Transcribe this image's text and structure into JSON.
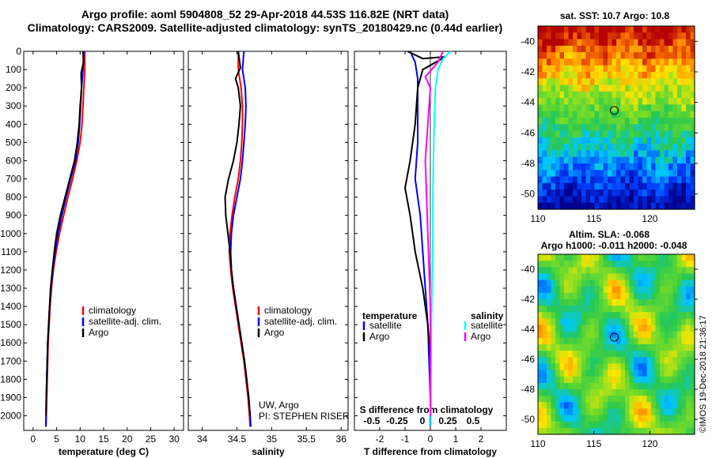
{
  "title": {
    "line1": "Argo profile: aoml 5904808_52 29-Apr-2018 44.53S 116.82E (NRT data)",
    "line2": "Climatology: CARS2009. Satellite-adjusted climatology: synTS_20180429.nc (0.44d earlier)"
  },
  "colors": {
    "climatology": "#ff0000",
    "satellite": "#0000ff",
    "argo": "#000000",
    "sat_salinity": "#00ffff",
    "argo_salinity": "#ff00ff"
  },
  "chart_data": [
    {
      "type": "line",
      "name": "temperature",
      "xlabel": "temperature (deg C)",
      "xlim": [
        -2,
        32
      ],
      "xticks": [
        "0",
        "5",
        "10",
        "15",
        "20",
        "25",
        "30"
      ],
      "ylim": [
        2080,
        0
      ],
      "yticks": [
        "0",
        "100",
        "200",
        "300",
        "400",
        "500",
        "600",
        "700",
        "800",
        "900",
        "1000",
        "1100",
        "1200",
        "1300",
        "1400",
        "1500",
        "1600",
        "1700",
        "1800",
        "1900",
        "2000"
      ],
      "legend": [
        "climatology",
        "satellite-adj. clim.",
        "Argo"
      ],
      "series": [
        {
          "name": "climatology",
          "points": [
            [
              11.0,
              0
            ],
            [
              11.0,
              100
            ],
            [
              10.8,
              200
            ],
            [
              10.6,
              300
            ],
            [
              10.4,
              400
            ],
            [
              10.0,
              500
            ],
            [
              9.3,
              600
            ],
            [
              8.4,
              700
            ],
            [
              7.4,
              800
            ],
            [
              6.5,
              900
            ],
            [
              5.6,
              1000
            ],
            [
              4.9,
              1100
            ],
            [
              4.3,
              1200
            ],
            [
              3.9,
              1300
            ],
            [
              3.6,
              1400
            ],
            [
              3.4,
              1500
            ],
            [
              3.2,
              1600
            ],
            [
              3.1,
              1700
            ],
            [
              3.0,
              1800
            ],
            [
              2.9,
              1900
            ],
            [
              2.8,
              2000
            ],
            [
              2.75,
              2060
            ]
          ]
        },
        {
          "name": "satellite-adj. clim.",
          "points": [
            [
              10.8,
              0
            ],
            [
              10.6,
              100
            ],
            [
              10.3,
              200
            ],
            [
              10.1,
              300
            ],
            [
              9.9,
              400
            ],
            [
              9.6,
              500
            ],
            [
              9.0,
              600
            ],
            [
              8.0,
              700
            ],
            [
              7.0,
              800
            ],
            [
              6.1,
              900
            ],
            [
              5.3,
              1000
            ],
            [
              4.7,
              1100
            ],
            [
              4.2,
              1200
            ],
            [
              3.8,
              1300
            ],
            [
              3.5,
              1400
            ],
            [
              3.3,
              1500
            ],
            [
              3.1,
              1600
            ],
            [
              3.0,
              1700
            ],
            [
              2.9,
              1800
            ],
            [
              2.8,
              1900
            ],
            [
              2.75,
              2000
            ],
            [
              2.7,
              2060
            ]
          ]
        },
        {
          "name": "Argo",
          "points": [
            [
              10.6,
              0
            ],
            [
              10.7,
              60
            ],
            [
              10.2,
              120
            ],
            [
              10.3,
              200
            ],
            [
              10.0,
              300
            ],
            [
              9.8,
              400
            ],
            [
              9.4,
              500
            ],
            [
              8.8,
              600
            ],
            [
              7.8,
              700
            ],
            [
              6.8,
              800
            ],
            [
              5.8,
              900
            ],
            [
              5.0,
              1000
            ],
            [
              4.5,
              1100
            ],
            [
              4.1,
              1200
            ],
            [
              3.7,
              1300
            ],
            [
              3.5,
              1400
            ],
            [
              3.3,
              1500
            ],
            [
              3.1,
              1600
            ],
            [
              3.0,
              1700
            ],
            [
              2.9,
              1800
            ],
            [
              2.8,
              1900
            ],
            [
              2.75,
              2000
            ]
          ]
        }
      ]
    },
    {
      "type": "line",
      "name": "salinity",
      "xlabel": "salinity",
      "xlim": [
        33.8,
        36.1
      ],
      "xticks": [
        "34",
        "34.5",
        "35",
        "35.5",
        "36"
      ],
      "ylim": [
        2080,
        0
      ],
      "legend": [
        "climatology",
        "satellite-adj. clim.",
        "Argo"
      ],
      "annotation": [
        "UW, Argo",
        "PI: STEPHEN RISER"
      ],
      "series": [
        {
          "name": "climatology",
          "points": [
            [
              34.52,
              0
            ],
            [
              34.52,
              100
            ],
            [
              34.56,
              200
            ],
            [
              34.58,
              300
            ],
            [
              34.58,
              400
            ],
            [
              34.57,
              500
            ],
            [
              34.55,
              600
            ],
            [
              34.52,
              700
            ],
            [
              34.47,
              800
            ],
            [
              34.43,
              900
            ],
            [
              34.4,
              1000
            ],
            [
              34.39,
              1100
            ],
            [
              34.41,
              1200
            ],
            [
              34.44,
              1300
            ],
            [
              34.48,
              1400
            ],
            [
              34.52,
              1500
            ],
            [
              34.56,
              1600
            ],
            [
              34.6,
              1700
            ],
            [
              34.63,
              1800
            ],
            [
              34.66,
              1900
            ],
            [
              34.68,
              2000
            ],
            [
              34.69,
              2060
            ]
          ]
        },
        {
          "name": "satellite-adj. clim.",
          "points": [
            [
              34.6,
              0
            ],
            [
              34.58,
              100
            ],
            [
              34.62,
              200
            ],
            [
              34.63,
              300
            ],
            [
              34.62,
              400
            ],
            [
              34.6,
              500
            ],
            [
              34.58,
              600
            ],
            [
              34.55,
              700
            ],
            [
              34.5,
              800
            ],
            [
              34.45,
              900
            ],
            [
              34.42,
              1000
            ],
            [
              34.41,
              1100
            ],
            [
              34.42,
              1200
            ],
            [
              34.45,
              1300
            ],
            [
              34.49,
              1400
            ],
            [
              34.53,
              1500
            ],
            [
              34.57,
              1600
            ],
            [
              34.61,
              1700
            ],
            [
              34.64,
              1800
            ],
            [
              34.67,
              1900
            ],
            [
              34.69,
              2000
            ],
            [
              34.7,
              2060
            ]
          ]
        },
        {
          "name": "Argo",
          "points": [
            [
              34.52,
              0
            ],
            [
              34.55,
              90
            ],
            [
              34.48,
              150
            ],
            [
              34.52,
              200
            ],
            [
              34.55,
              300
            ],
            [
              34.53,
              400
            ],
            [
              34.5,
              500
            ],
            [
              34.45,
              600
            ],
            [
              34.38,
              700
            ],
            [
              34.33,
              800
            ],
            [
              34.34,
              900
            ],
            [
              34.37,
              1000
            ],
            [
              34.4,
              1100
            ],
            [
              34.42,
              1200
            ],
            [
              34.45,
              1300
            ],
            [
              34.49,
              1400
            ],
            [
              34.53,
              1500
            ],
            [
              34.57,
              1600
            ],
            [
              34.61,
              1700
            ],
            [
              34.64,
              1800
            ],
            [
              34.67,
              1900
            ],
            [
              34.69,
              2000
            ]
          ]
        }
      ]
    },
    {
      "type": "line",
      "name": "difference",
      "xlabel": "T difference from climatology",
      "xlabel2": "S difference from climatology",
      "xlim": [
        -3,
        3
      ],
      "xticks": [
        "-2",
        "-1",
        "0",
        "1",
        "2"
      ],
      "xticks2": [
        "-0.5",
        "-0.25",
        "0",
        "0.25",
        "0.5"
      ],
      "ylim": [
        2080,
        0
      ],
      "legend_left_title": "temperature",
      "legend_right_title": "salinity",
      "legend": [
        "satellite",
        "Argo",
        "satellite",
        "Argo"
      ],
      "series": [
        {
          "name": "T satellite",
          "points": [
            [
              -0.8,
              0
            ],
            [
              -0.6,
              60
            ],
            [
              -0.5,
              150
            ],
            [
              -0.5,
              300
            ],
            [
              -0.5,
              500
            ],
            [
              -0.6,
              700
            ],
            [
              -0.4,
              900
            ],
            [
              -0.3,
              1100
            ],
            [
              -0.2,
              1300
            ],
            [
              -0.1,
              1500
            ],
            [
              -0.05,
              1700
            ],
            [
              0,
              1900
            ],
            [
              0,
              2060
            ]
          ]
        },
        {
          "name": "T Argo",
          "points": [
            [
              -0.9,
              0
            ],
            [
              -0.3,
              40
            ],
            [
              0.6,
              30
            ],
            [
              -0.3,
              100
            ],
            [
              -0.5,
              200
            ],
            [
              -0.6,
              400
            ],
            [
              -0.8,
              600
            ],
            [
              -1.0,
              750
            ],
            [
              -0.8,
              900
            ],
            [
              -0.6,
              1100
            ],
            [
              -0.3,
              1300
            ],
            [
              -0.1,
              1500
            ],
            [
              0,
              1700
            ],
            [
              0,
              1900
            ],
            [
              0,
              2000
            ]
          ]
        },
        {
          "name": "S satellite",
          "points": [
            [
              0.8,
              0
            ],
            [
              0.5,
              40
            ],
            [
              0.3,
              100
            ],
            [
              0.2,
              200
            ],
            [
              0.15,
              400
            ],
            [
              0.12,
              600
            ],
            [
              0.1,
              800
            ],
            [
              0.1,
              1000
            ],
            [
              0.08,
              1200
            ],
            [
              0.05,
              1400
            ],
            [
              0.03,
              1600
            ],
            [
              0.02,
              1800
            ],
            [
              0.02,
              2060
            ]
          ]
        },
        {
          "name": "S Argo",
          "points": [
            [
              0.5,
              0
            ],
            [
              0.3,
              60
            ],
            [
              -0.2,
              140
            ],
            [
              0,
              200
            ],
            [
              -0.1,
              400
            ],
            [
              -0.2,
              600
            ],
            [
              -0.15,
              800
            ],
            [
              -0.1,
              1000
            ],
            [
              -0.05,
              1200
            ],
            [
              0,
              1400
            ],
            [
              0,
              1600
            ],
            [
              0,
              1800
            ],
            [
              0,
              2000
            ]
          ]
        }
      ]
    },
    {
      "type": "heatmap",
      "name": "sst-map",
      "title": "sat. SST: 10.7 Argo: 10.8",
      "xticks": [
        "110",
        "115",
        "120"
      ],
      "yticks": [
        "-40",
        "-42",
        "-44",
        "-46",
        "-48",
        "-50"
      ],
      "xlim": [
        110,
        124
      ],
      "ylim": [
        -51,
        -39
      ],
      "marker": {
        "lon": 116.82,
        "lat": -44.53
      }
    },
    {
      "type": "heatmap",
      "name": "sla-map",
      "title": "Altim. SLA: -0.068",
      "subtitle": "Argo h1000: -0.011 h2000: -0.048",
      "xticks": [
        "110",
        "115",
        "120"
      ],
      "yticks": [
        "-40",
        "-42",
        "-44",
        "-46",
        "-48",
        "-50"
      ],
      "xlim": [
        110,
        124
      ],
      "ylim": [
        -51,
        -39
      ],
      "marker": {
        "lon": 116.82,
        "lat": -44.53
      }
    }
  ],
  "footer": "©IMOS 19-Dec-2018 21:36:17"
}
